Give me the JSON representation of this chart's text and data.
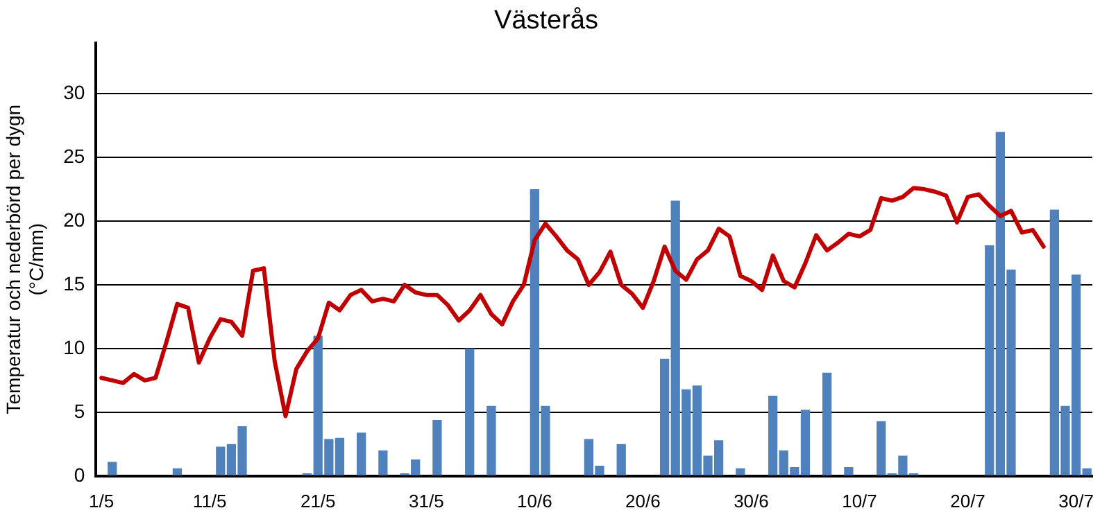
{
  "chart_data": {
    "type": "bar",
    "title": "Västerås",
    "ylabel": "Temperatur och nederbörd per dygn\n(°C/mm)",
    "categories": [
      "1/5",
      null,
      null,
      null,
      null,
      null,
      null,
      null,
      null,
      null,
      "11/5",
      null,
      null,
      null,
      null,
      null,
      null,
      null,
      null,
      null,
      "21/5",
      null,
      null,
      null,
      null,
      null,
      null,
      null,
      null,
      null,
      "31/5",
      null,
      null,
      null,
      null,
      null,
      null,
      null,
      null,
      null,
      "10/6",
      null,
      null,
      null,
      null,
      null,
      null,
      null,
      null,
      null,
      "20/6",
      null,
      null,
      null,
      null,
      null,
      null,
      null,
      null,
      null,
      "30/6",
      null,
      null,
      null,
      null,
      null,
      null,
      null,
      null,
      null,
      "10/7",
      null,
      null,
      null,
      null,
      null,
      null,
      null,
      null,
      null,
      "20/7",
      null,
      null,
      null,
      null,
      null,
      null,
      null,
      null,
      null,
      "30/7",
      null
    ],
    "series": [
      {
        "color": "#4f81bd",
        "values": [
          null,
          1.1,
          null,
          null,
          null,
          null,
          null,
          0.6,
          null,
          null,
          null,
          2.3,
          2.5,
          3.9,
          null,
          null,
          null,
          null,
          null,
          0.2,
          11,
          2.9,
          3.0,
          null,
          3.4,
          null,
          2.0,
          null,
          0.2,
          1.3,
          null,
          4.4,
          null,
          null,
          10,
          null,
          5.5,
          null,
          null,
          null,
          22.5,
          5.5,
          null,
          null,
          null,
          2.9,
          0.8,
          null,
          2.5,
          null,
          null,
          null,
          9.2,
          21.6,
          6.8,
          7.1,
          1.6,
          2.8,
          null,
          0.6,
          null,
          null,
          6.3,
          2.0,
          0.7,
          5.2,
          null,
          8.1,
          null,
          0.7,
          null,
          null,
          4.3,
          0.2,
          1.6,
          0.2,
          null,
          null,
          null,
          null,
          null,
          null,
          18.1,
          27,
          16.2,
          null,
          null,
          null,
          20.9,
          5.5,
          15.8,
          0.6
        ]
      },
      {
        "type": "line",
        "color": "#c00000",
        "values": [
          7.7,
          7.5,
          7.3,
          8,
          7.5,
          7.7,
          10.5,
          13.5,
          13.2,
          8.9,
          10.8,
          12.3,
          12.1,
          11,
          16.1,
          16.3,
          9,
          4.7,
          8.4,
          9.8,
          10.8,
          13.6,
          13,
          14.2,
          14.6,
          13.7,
          13.9,
          13.7,
          15,
          14.4,
          14.2,
          14.2,
          13.4,
          12.2,
          13,
          14.2,
          12.7,
          11.9,
          13.7,
          15,
          18.5,
          19.8,
          18.8,
          17.7,
          17,
          15,
          16,
          17.6,
          15,
          14.3,
          13.2,
          15.3,
          18,
          16.1,
          15.4,
          17,
          17.7,
          19.4,
          18.8,
          15.7,
          15.3,
          14.6,
          17.3,
          15.3,
          14.8,
          16.7,
          18.9,
          17.7,
          18.3,
          19,
          18.8,
          19.3,
          21.8,
          21.6,
          21.9,
          22.6,
          22.5,
          22.3,
          22,
          19.9,
          21.9,
          22.1,
          21.2,
          20.4,
          20.8,
          19.1,
          19.3,
          18,
          null,
          null,
          null,
          null
        ]
      }
    ],
    "ylim": [
      0,
      34
    ],
    "yticks": [
      0,
      5,
      10,
      15,
      20,
      25,
      30
    ],
    "grid": "y"
  }
}
